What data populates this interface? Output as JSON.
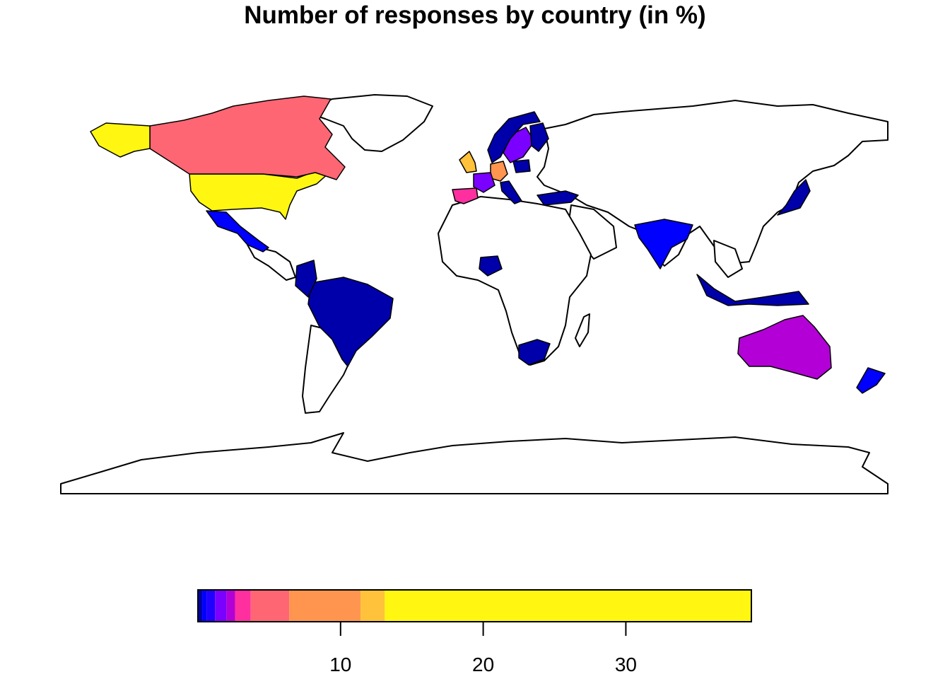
{
  "title": "Number of responses by country (in %)",
  "colors": {
    "ocean": "#ffffff",
    "no_data": "#ffffff",
    "outline": "#000000"
  },
  "map_data": {
    "projection": "equirectangular",
    "lon_range": [
      -180,
      180
    ],
    "lat_range": [
      -90,
      90
    ],
    "countries": [
      {
        "name": "United States",
        "bin": 10,
        "value": 38
      },
      {
        "name": "Canada",
        "bin": 7,
        "value": 6
      },
      {
        "name": "United Kingdom",
        "bin": 9,
        "value": 12
      },
      {
        "name": "Germany",
        "bin": 8,
        "value": 9
      },
      {
        "name": "Spain",
        "bin": 6,
        "value": 4
      },
      {
        "name": "France",
        "bin": 4,
        "value": 2
      },
      {
        "name": "Australia",
        "bin": 5,
        "value": 3
      },
      {
        "name": "Sweden",
        "bin": 4,
        "value": 2
      },
      {
        "name": "India",
        "bin": 2,
        "value": 1
      },
      {
        "name": "Mexico",
        "bin": 2,
        "value": 1
      },
      {
        "name": "New Zealand",
        "bin": 2,
        "value": 1
      },
      {
        "name": "Brazil",
        "bin": 1,
        "value": 0.5
      },
      {
        "name": "South Africa",
        "bin": 1,
        "value": 0.5
      },
      {
        "name": "Japan",
        "bin": 1,
        "value": 0.5
      },
      {
        "name": "Nigeria",
        "bin": 1,
        "value": 0.5
      },
      {
        "name": "Colombia",
        "bin": 1,
        "value": 0.5
      },
      {
        "name": "Indonesia",
        "bin": 1,
        "value": 0.5
      },
      {
        "name": "Turkey",
        "bin": 1,
        "value": 0.5
      },
      {
        "name": "Poland",
        "bin": 1,
        "value": 0.5
      },
      {
        "name": "Finland",
        "bin": 1,
        "value": 0.5
      },
      {
        "name": "Norway",
        "bin": 1,
        "value": 0.5
      },
      {
        "name": "Italy",
        "bin": 1,
        "value": 0.5
      }
    ]
  },
  "legend": {
    "ticks": [
      "10",
      "20",
      "30"
    ],
    "tick_values": [
      10,
      20,
      30
    ],
    "range": [
      0,
      38.8
    ],
    "bins": [
      {
        "from": 0.0,
        "to": 0.3,
        "color": "#0000AA"
      },
      {
        "from": 0.3,
        "to": 0.6,
        "color": "#0000FF"
      },
      {
        "from": 0.6,
        "to": 1.2,
        "color": "#2000FF"
      },
      {
        "from": 1.2,
        "to": 2.0,
        "color": "#7A00FF"
      },
      {
        "from": 2.0,
        "to": 2.6,
        "color": "#B300D6"
      },
      {
        "from": 2.6,
        "to": 3.7,
        "color": "#FF2FA0"
      },
      {
        "from": 3.7,
        "to": 6.4,
        "color": "#FF6673"
      },
      {
        "from": 6.4,
        "to": 11.4,
        "color": "#FF954F"
      },
      {
        "from": 11.4,
        "to": 13.1,
        "color": "#FFC23A"
      },
      {
        "from": 13.1,
        "to": 38.8,
        "color": "#FFF711"
      }
    ]
  }
}
